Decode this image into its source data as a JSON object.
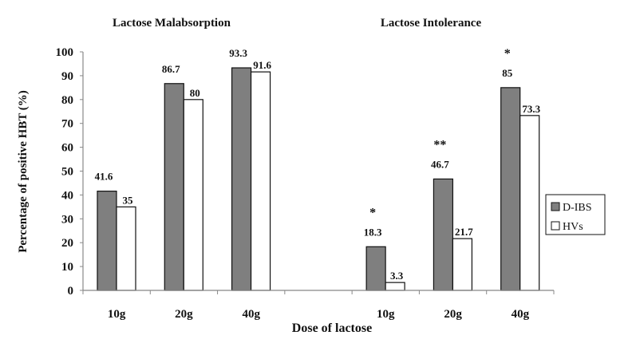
{
  "chart_data": {
    "type": "bar",
    "titles": [
      "Lactose Malabsorption",
      "Lactose Intolerance"
    ],
    "xlabel": "Dose of lactose",
    "ylabel": "Percentage of positive HBT (%)",
    "ylim": [
      0,
      100
    ],
    "yticks": [
      0,
      10,
      20,
      30,
      40,
      50,
      60,
      70,
      80,
      90,
      100
    ],
    "categories": [
      "10g",
      "20g",
      "40g",
      "",
      "10g",
      "20g",
      "40g"
    ],
    "series": [
      {
        "name": "D-IBS",
        "color": "#7f7f7f",
        "values": [
          41.6,
          86.7,
          93.3,
          null,
          18.3,
          46.7,
          85
        ],
        "labels": [
          "41.6",
          "86.7",
          "93.3",
          "",
          "18.3",
          "46.7",
          "85"
        ]
      },
      {
        "name": "HVs",
        "color": "#ffffff",
        "values": [
          35,
          80,
          91.6,
          null,
          3.3,
          21.7,
          73.3
        ],
        "labels": [
          "35",
          "80",
          "91.6",
          "",
          "3.3",
          "21.7",
          "73.3"
        ]
      }
    ],
    "annotations": [
      "",
      "",
      "",
      "",
      "*",
      "**",
      "*"
    ],
    "legend": "right",
    "grid": false
  }
}
